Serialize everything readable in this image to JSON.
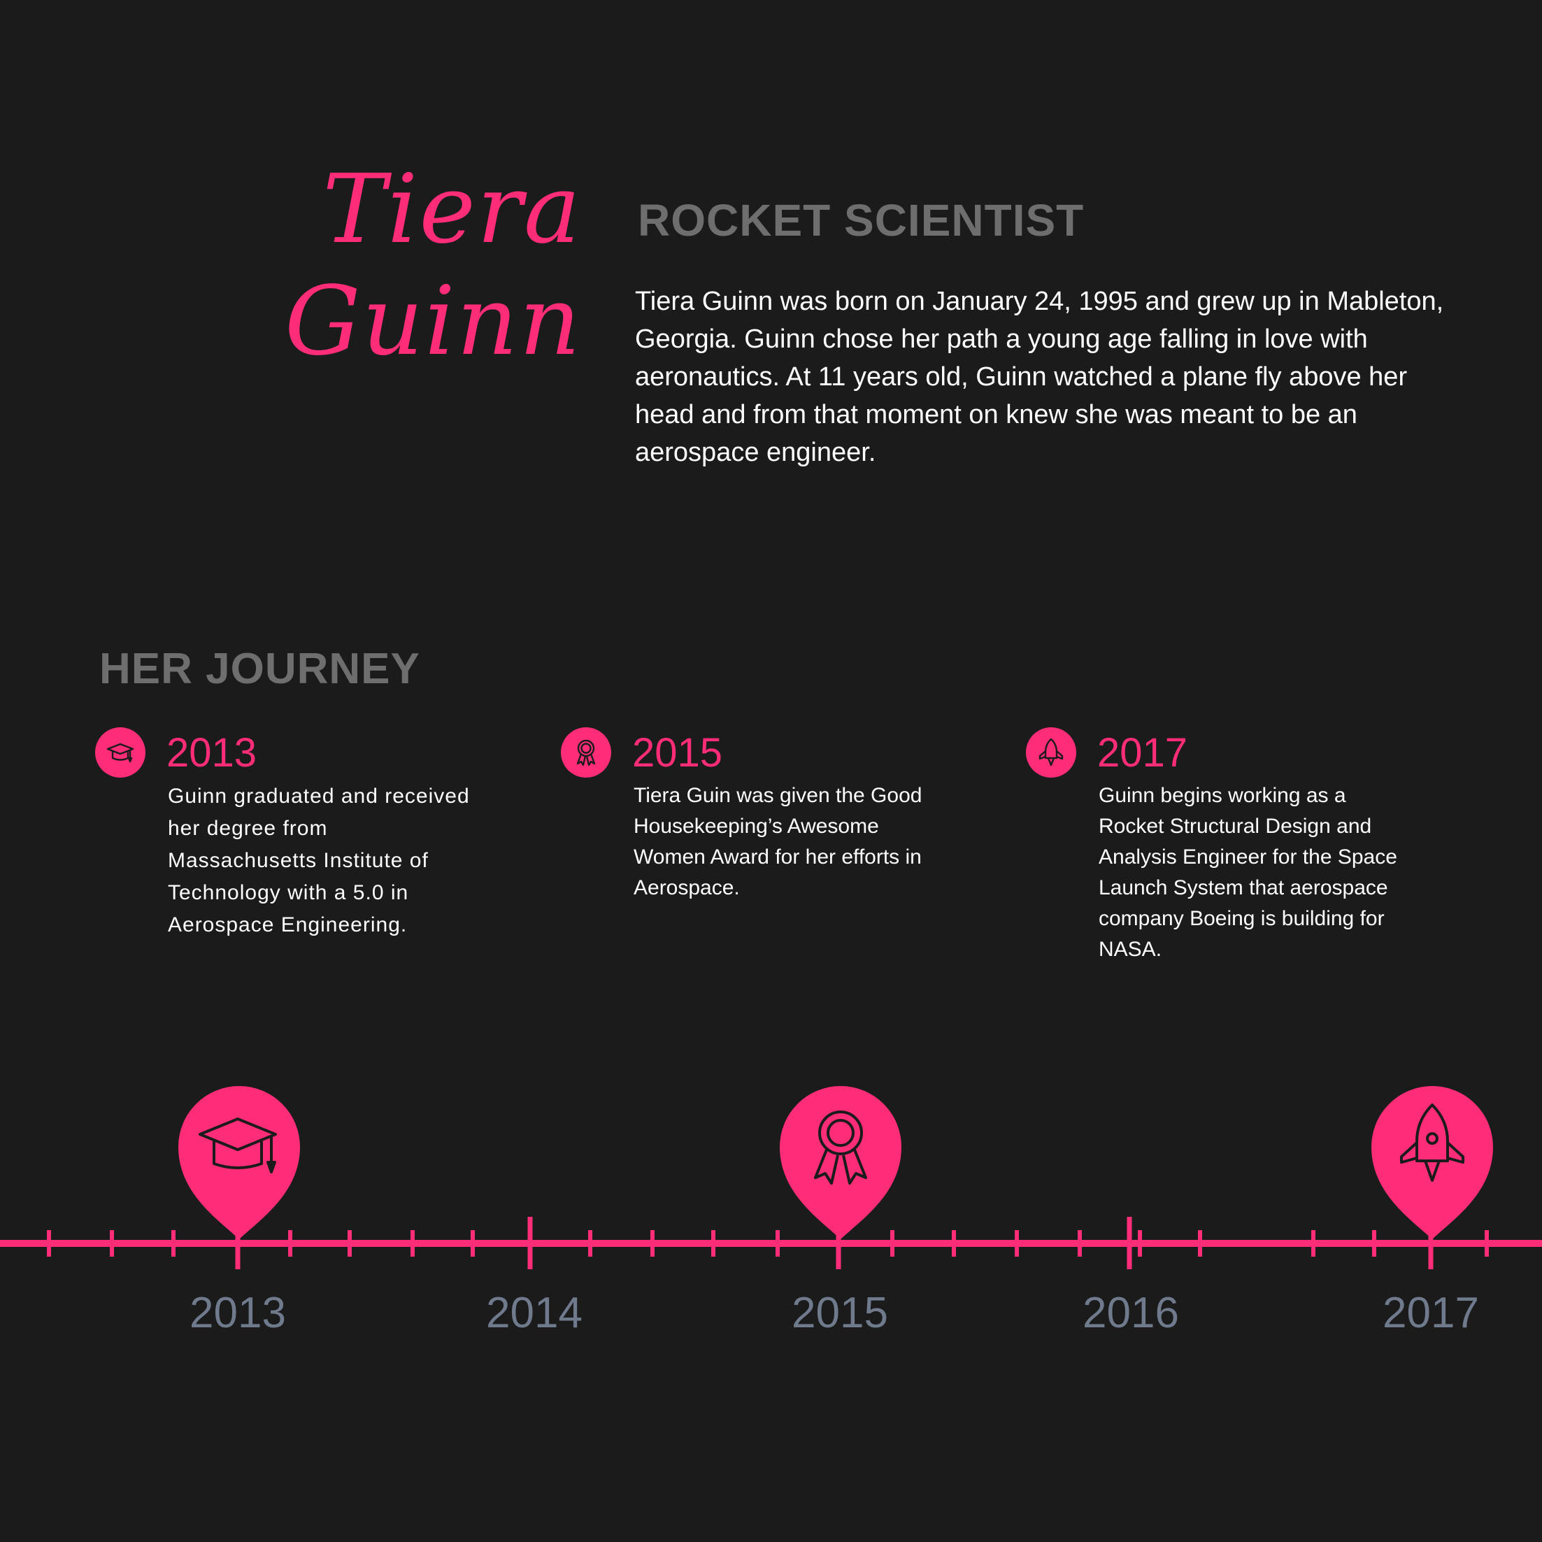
{
  "header": {
    "first_name": "Tiera",
    "last_name": "Guinn",
    "role": "ROCKET SCIENTIST",
    "bio": "Tiera Guinn was born on January 24, 1995 and grew up in Mableton, Georgia. Guinn chose her path a young age falling in love with aeronautics. At 11 years old, Guinn watched a plane fly above her head and from that moment on knew she was meant to be an aerospace engineer."
  },
  "journey": {
    "title": "HER JOURNEY",
    "events": [
      {
        "year": "2013",
        "icon": "graduation-cap-icon",
        "text": "Guinn graduated and received her degree from Massachusetts Institute of Technology with a 5.0 in Aerospace Engineering."
      },
      {
        "year": "2015",
        "icon": "award-ribbon-icon",
        "text": "Tiera Guin was given the Good Housekeeping’s Awesome Women Award for her efforts in Aerospace."
      },
      {
        "year": "2017",
        "icon": "rocket-icon",
        "text": "Guinn begins working as a Rocket Structural Design and Analysis Engineer for the Space Launch System that aerospace company Boeing is building for NASA."
      }
    ]
  },
  "timeline": {
    "years": [
      "2013",
      "2014",
      "2015",
      "2016",
      "2017"
    ],
    "markers": [
      {
        "year": "2013",
        "icon": "graduation-cap-icon"
      },
      {
        "year": "2015",
        "icon": "award-ribbon-icon"
      },
      {
        "year": "2017",
        "icon": "rocket-icon"
      }
    ]
  },
  "colors": {
    "background": "#1b1b1c",
    "accent": "#ff2d78",
    "heading_gray": "#6e6e6e",
    "axis_label": "#6f7a8c"
  }
}
